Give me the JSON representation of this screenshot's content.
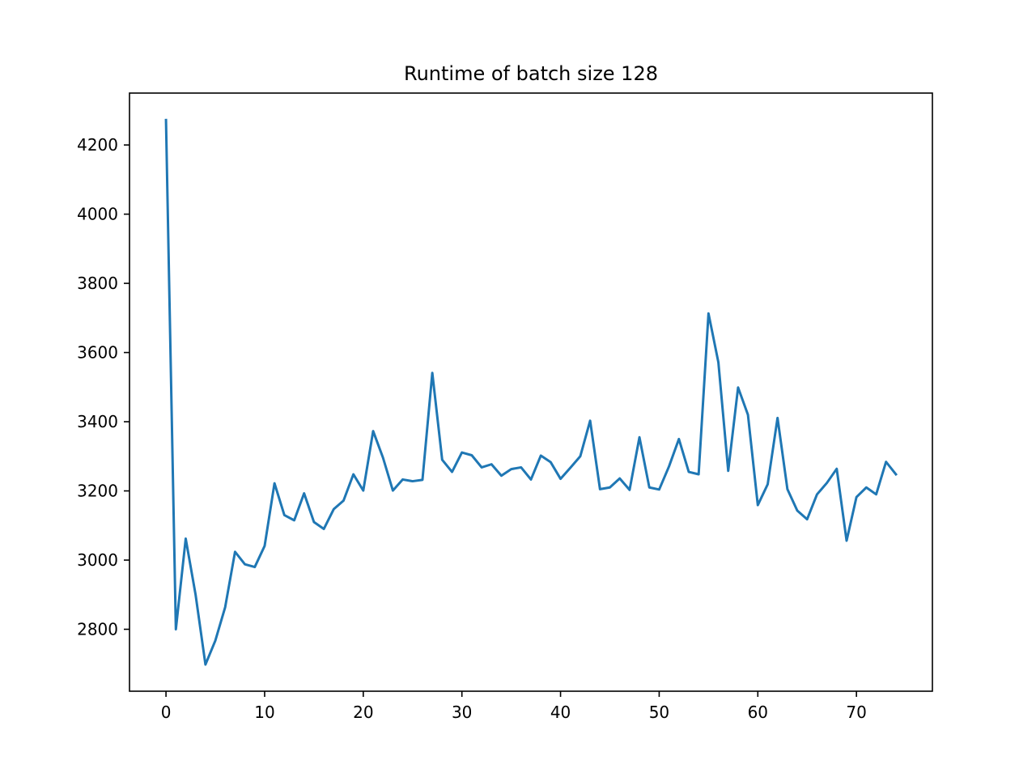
{
  "chart_data": {
    "type": "line",
    "title": "Runtime of batch size 128",
    "xlabel": "",
    "ylabel": "",
    "xlim": [
      -3.7,
      77.7
    ],
    "ylim": [
      2621,
      4350
    ],
    "x_ticks": [
      0,
      10,
      20,
      30,
      40,
      50,
      60,
      70
    ],
    "x_tick_labels": [
      "0",
      "10",
      "20",
      "30",
      "40",
      "50",
      "60",
      "70"
    ],
    "y_ticks": [
      2800,
      3000,
      3200,
      3400,
      3600,
      3800,
      4000,
      4200
    ],
    "y_tick_labels": [
      "2800",
      "3000",
      "3200",
      "3400",
      "3600",
      "3800",
      "4000",
      "4200"
    ],
    "grid": false,
    "legend": "none",
    "series": [
      {
        "color": "#1f77b4",
        "x": [
          0,
          1,
          2,
          3,
          4,
          5,
          6,
          7,
          8,
          9,
          10,
          11,
          12,
          13,
          14,
          15,
          16,
          17,
          18,
          19,
          20,
          21,
          22,
          23,
          24,
          25,
          26,
          27,
          28,
          29,
          30,
          31,
          32,
          33,
          34,
          35,
          36,
          37,
          38,
          39,
          40,
          41,
          42,
          43,
          44,
          45,
          46,
          47,
          48,
          49,
          50,
          51,
          52,
          53,
          54,
          55,
          56,
          57,
          58,
          59,
          60,
          61,
          62,
          63,
          64,
          65,
          66,
          67,
          68,
          69,
          70,
          71,
          72,
          73,
          74
        ],
        "y": [
          4272,
          2800,
          3062,
          2900,
          2698,
          2767,
          2864,
          3024,
          2988,
          2980,
          3041,
          3222,
          3130,
          3115,
          3193,
          3110,
          3090,
          3147,
          3172,
          3248,
          3201,
          3373,
          3296,
          3201,
          3233,
          3228,
          3232,
          3541,
          3290,
          3255,
          3311,
          3303,
          3268,
          3277,
          3244,
          3263,
          3268,
          3233,
          3302,
          3283,
          3235,
          3267,
          3300,
          3403,
          3205,
          3210,
          3236,
          3203,
          3355,
          3210,
          3204,
          3271,
          3350,
          3255,
          3248,
          3713,
          3572,
          3258,
          3499,
          3420,
          3159,
          3219,
          3411,
          3205,
          3143,
          3118,
          3190,
          3223,
          3264,
          3056,
          3182,
          3210,
          3190,
          3284,
          3248
        ]
      }
    ]
  }
}
